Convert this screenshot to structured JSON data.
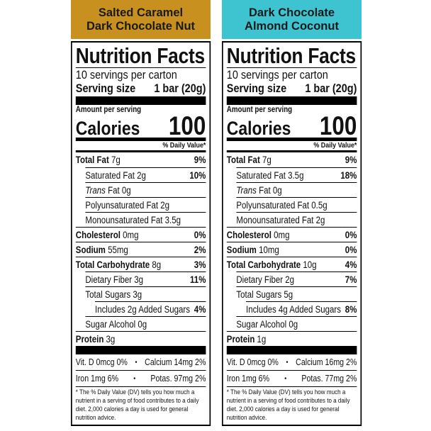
{
  "panels": [
    {
      "flavor": [
        "Salted Caramel",
        "Dark Chocolate Nut"
      ],
      "color": "#c8901e",
      "title": "Nutrition Facts",
      "servings": "10 servings per carton",
      "serving_size_label": "Serving size",
      "serving_size": "1 bar (20g)",
      "amount_per_serving": "Amount per serving",
      "calories_label": "Calories",
      "calories": 100,
      "dv_header": "% Daily Value*",
      "rows": [
        {
          "name": "Total Fat",
          "amount": "7g",
          "dv": "9%",
          "bold": true,
          "indent": 0
        },
        {
          "name": "Saturated Fat 2g",
          "dv": "10%",
          "bold": false,
          "indent": 1
        },
        {
          "name": "Trans",
          "amount": "Fat 0g",
          "bold": false,
          "italic": true,
          "indent": 1
        },
        {
          "name": "Polyunsaturated Fat 2g",
          "bold": false,
          "indent": 1
        },
        {
          "name": "Monounsaturated Fat 3.5g",
          "bold": false,
          "indent": 1
        },
        {
          "name": "Cholesterol",
          "amount": "0mg",
          "dv": "0%",
          "bold": true,
          "indent": 0
        },
        {
          "name": "Sodium",
          "amount": "55mg",
          "dv": "2%",
          "bold": true,
          "indent": 0
        },
        {
          "name": "Total Carbohydrate",
          "amount": "8g",
          "dv": "3%",
          "bold": true,
          "indent": 0
        },
        {
          "name": "Dietary Fiber 3g",
          "dv": "11%",
          "bold": false,
          "indent": 1
        },
        {
          "name": "Total Sugars 3g",
          "bold": false,
          "indent": 1
        },
        {
          "name": "Includes 2g Added Sugars",
          "dv": "4%",
          "bold": false,
          "indent": 2
        },
        {
          "name": "Sugar Alcohol 0g",
          "bold": false,
          "indent": 1
        },
        {
          "name": "Protein",
          "amount": "3g",
          "bold": true,
          "indent": 0
        }
      ],
      "vitamins": [
        [
          "Vit. D 0mcg 0%",
          "Calcium 14mg 2%"
        ],
        [
          "Iron 1mg 6%",
          "Potas. 97mg 2%"
        ]
      ],
      "footnote": "* The % Daily Value (DV) tells you how much a nutrient in a serving of food contributes to a daily diet. 2,000 calories a day is used for general nutrition advice."
    },
    {
      "flavor": [
        "Dark Chocolate",
        "Almond Coconut"
      ],
      "color": "#3ec4d0",
      "title": "Nutrition Facts",
      "servings": "10 servings per carton",
      "serving_size_label": "Serving size",
      "serving_size": "1 bar (20g)",
      "amount_per_serving": "Amount per serving",
      "calories_label": "Calories",
      "calories": 100,
      "dv_header": "% Daily Value*",
      "rows": [
        {
          "name": "Total Fat",
          "amount": "7g",
          "dv": "9%",
          "bold": true,
          "indent": 0
        },
        {
          "name": "Saturated Fat 3.5g",
          "dv": "18%",
          "bold": false,
          "indent": 1
        },
        {
          "name": "Trans",
          "amount": "Fat 0g",
          "bold": false,
          "italic": true,
          "indent": 1
        },
        {
          "name": "Polyunsaturated Fat 0.5g",
          "bold": false,
          "indent": 1
        },
        {
          "name": "Monounsaturated Fat 2g",
          "bold": false,
          "indent": 1
        },
        {
          "name": "Cholesterol",
          "amount": "0mg",
          "dv": "0%",
          "bold": true,
          "indent": 0
        },
        {
          "name": "Sodium",
          "amount": "10mg",
          "dv": "0%",
          "bold": true,
          "indent": 0
        },
        {
          "name": "Total Carbohydrate",
          "amount": "10g",
          "dv": "4%",
          "bold": true,
          "indent": 0
        },
        {
          "name": "Dietary Fiber 2g",
          "dv": "7%",
          "bold": false,
          "indent": 1
        },
        {
          "name": "Total Sugars 5g",
          "bold": false,
          "indent": 1
        },
        {
          "name": "Includes 4g Added Sugars",
          "dv": "8%",
          "bold": false,
          "indent": 2
        },
        {
          "name": "Sugar Alcohol 0g",
          "bold": false,
          "indent": 1
        },
        {
          "name": "Protein",
          "amount": "1g",
          "bold": true,
          "indent": 0
        }
      ],
      "vitamins": [
        [
          "Vit. D 0mcg 0%",
          "Calcium 16mg 2%"
        ],
        [
          "Iron 1mg 6%",
          "Potas. 77mg 2%"
        ]
      ],
      "footnote": "* The % Daily Value (DV) tells you how much a nutrient in a serving of food contributes to a daily diet. 2,000 calories a day is used for general nutrition advice."
    }
  ]
}
